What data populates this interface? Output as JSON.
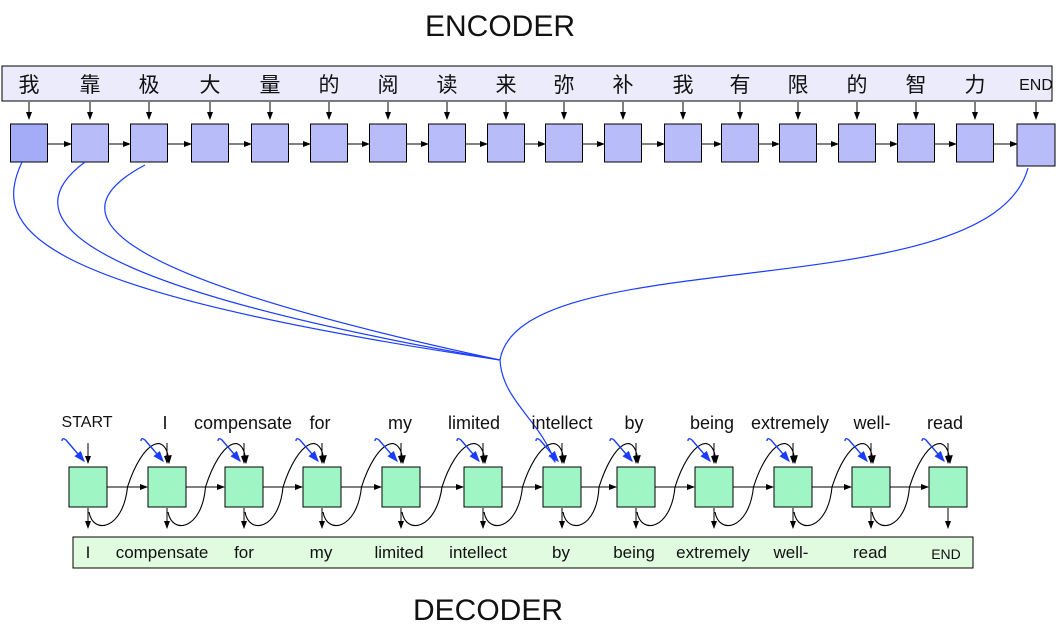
{
  "titles": {
    "encoder": "ENCODER",
    "decoder": "DECODER"
  },
  "encoder": {
    "tokens": [
      "我",
      "靠",
      "极",
      "大",
      "量",
      "的",
      "阅",
      "读",
      "来",
      "弥",
      "补",
      "我",
      "有",
      "限",
      "的",
      "智",
      "力",
      "END"
    ],
    "box_color": "#b8bcf8",
    "strip_color": "#ecebfc"
  },
  "decoder": {
    "inputs": [
      "START",
      "I",
      "compensate",
      "for",
      "my",
      "limited",
      "intellect",
      "by",
      "being",
      "extremely",
      "well-",
      "read"
    ],
    "outputs": [
      "I",
      "compensate",
      "for",
      "my",
      "limited",
      "intellect",
      "by",
      "being",
      "extremely",
      "well-",
      "read",
      "END"
    ],
    "box_color": "#a0f5c4",
    "strip_color": "#e0fbe0",
    "attention_color": "#1a3cff"
  }
}
